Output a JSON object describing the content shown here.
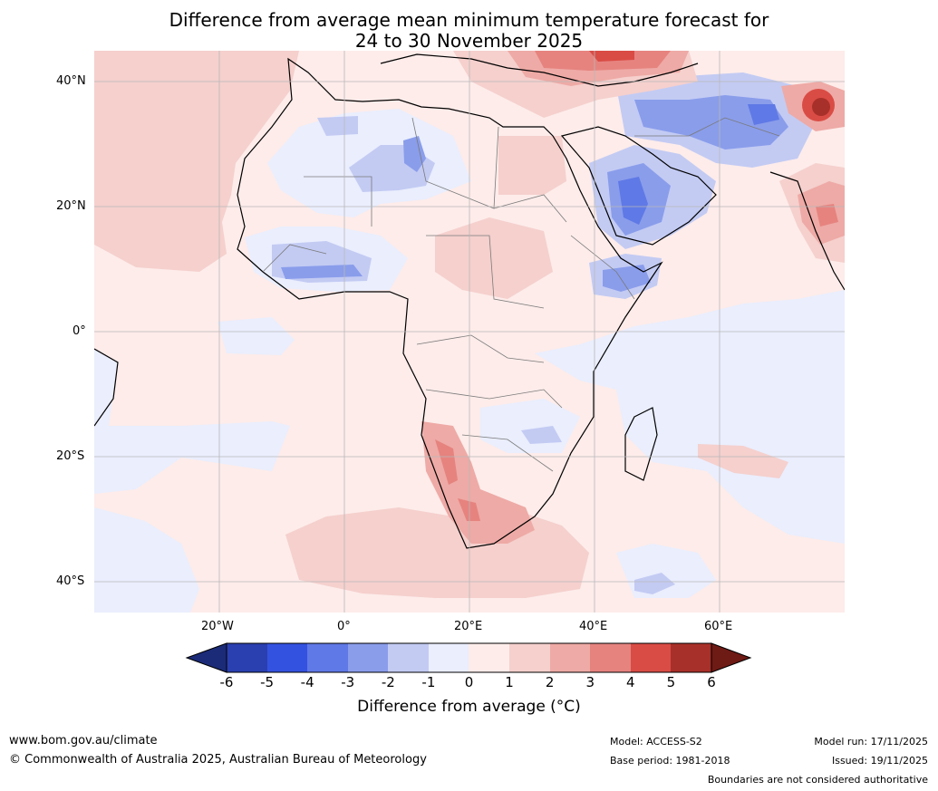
{
  "title": {
    "line1": "Difference from average mean minimum temperature forecast for",
    "line2": "24 to 30 November 2025"
  },
  "map": {
    "lat_labels": [
      "40°N",
      "20°N",
      "0°",
      "20°S",
      "40°S"
    ],
    "lat_values": [
      40,
      20,
      0,
      -20,
      -40
    ],
    "lon_labels": [
      "20°W",
      "0°",
      "20°E",
      "40°E",
      "60°E"
    ],
    "lon_values": [
      -20,
      0,
      20,
      40,
      60
    ],
    "lon_range": [
      -40,
      80
    ],
    "lat_range": [
      -45,
      45
    ]
  },
  "legend": {
    "title": "Difference from average (°C)",
    "ticks": [
      "-6",
      "-5",
      "-4",
      "-3",
      "-2",
      "-1",
      "0",
      "1",
      "2",
      "3",
      "4",
      "5",
      "6"
    ],
    "colors": {
      "below_min": "#1b2b78",
      "bins": [
        "#2a3fb0",
        "#3452e0",
        "#5f79e6",
        "#8a9deb",
        "#c3cbf3",
        "#eaeefd",
        "#fdecea",
        "#f5d0cd",
        "#eeaaa6",
        "#e6837f",
        "#d94c45",
        "#a8302a"
      ],
      "above_max": "#6e1a15"
    }
  },
  "footer": {
    "website": "www.bom.gov.au/climate",
    "copyright": "© Commonwealth of Australia 2025, Australian Bureau of Meteorology",
    "model": "Model: ACCESS-S2",
    "base_period": "Base period: 1981-2018",
    "model_run": "Model run: 17/11/2025",
    "issued": "Issued: 19/11/2025",
    "disclaimer": "Boundaries are not considered authoritative"
  }
}
